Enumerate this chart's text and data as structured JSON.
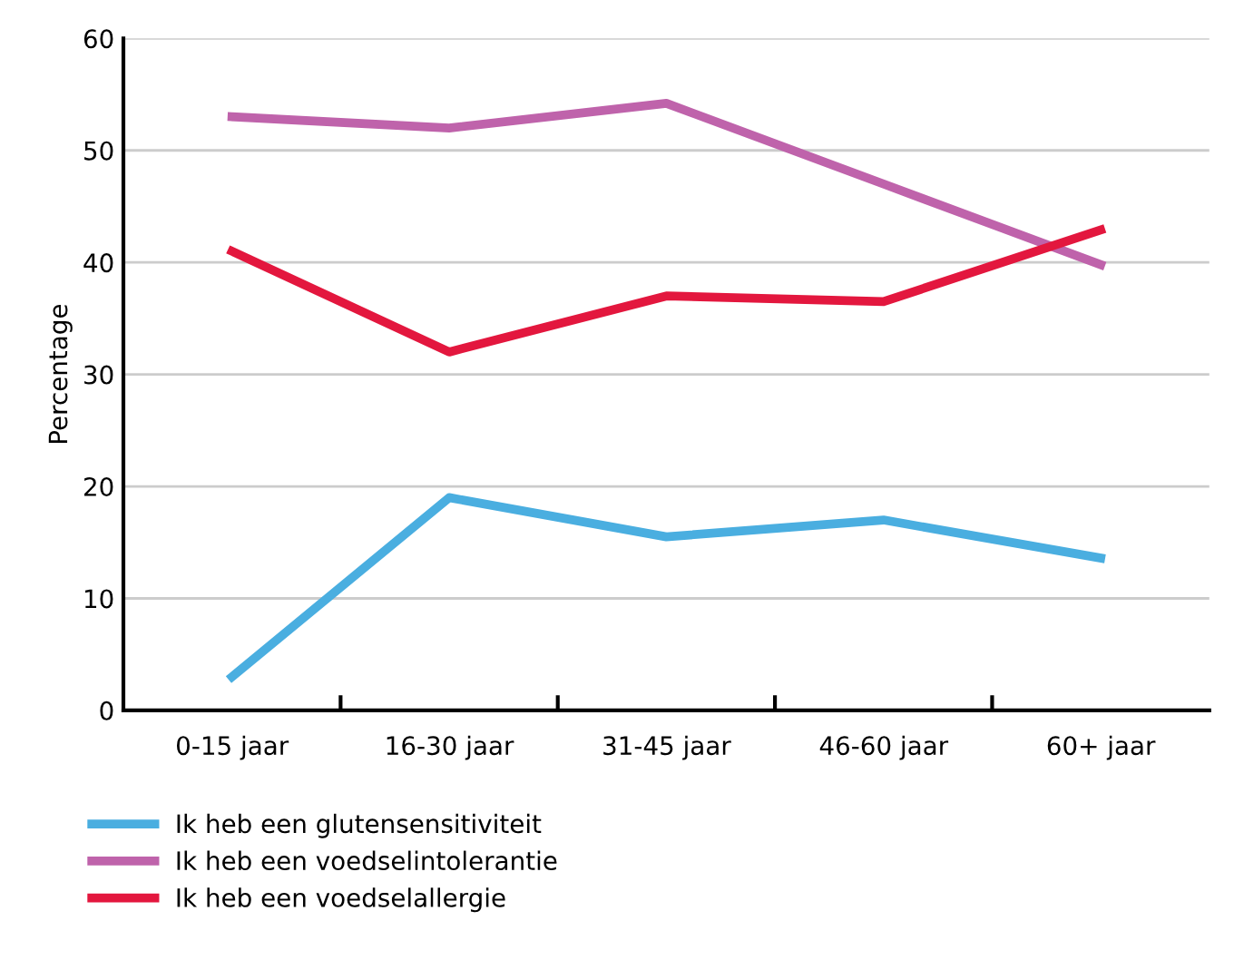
{
  "chart_data": {
    "type": "line",
    "ylabel": "Percentage",
    "categories": [
      "0-15 jaar",
      "16-30 jaar",
      "31-45 jaar",
      "46-60 jaar",
      "60+ jaar"
    ],
    "series": [
      {
        "name": "Ik heb een glutensensitiviteit",
        "color": "#4aaee0",
        "values": [
          3,
          19,
          15.5,
          17,
          13.6
        ]
      },
      {
        "name": "Ik heb een voedselintolerantie",
        "color": "#bf63ab",
        "values": [
          53,
          52,
          54.2,
          47,
          39.8
        ]
      },
      {
        "name": "Ik heb een voedselallergie",
        "color": "#e3173e",
        "values": [
          41,
          32,
          37,
          36.5,
          42.9
        ]
      }
    ],
    "ylim": [
      0,
      60
    ],
    "yticks": [
      0,
      10,
      20,
      30,
      40,
      50,
      60
    ],
    "grid": "y",
    "legend": "bottom",
    "marker": "none",
    "line_style": "solid"
  }
}
